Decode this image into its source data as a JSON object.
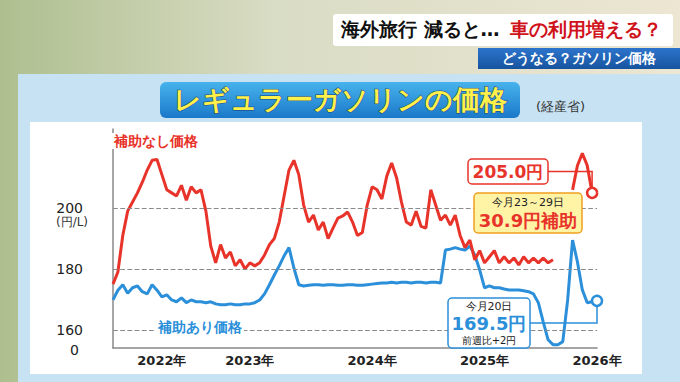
{
  "header": {
    "left": "海外旅行 減ると…",
    "right": "車の利用増える？",
    "subheader": "どうなる？ガソリン価格"
  },
  "chart_data": {
    "type": "line",
    "title": "レギュラーガソリンの価格",
    "source": "(経産省)",
    "ylabel": "(円/L)",
    "y_axis_break_label": "0",
    "categories": [
      null,
      null,
      null,
      null,
      null,
      null,
      null,
      null,
      null,
      null,
      "2022年",
      null,
      null,
      null,
      null,
      null,
      null,
      null,
      null,
      null,
      null,
      null,
      null,
      null,
      null,
      null,
      null,
      null,
      "2023年",
      null,
      null,
      null,
      null,
      null,
      null,
      null,
      null,
      null,
      null,
      null,
      null,
      null,
      null,
      null,
      null,
      null,
      null,
      null,
      null,
      null,
      null,
      null,
      null,
      "2024年",
      null,
      null,
      null,
      null,
      null,
      null,
      null,
      null,
      null,
      null,
      null,
      null,
      null,
      null,
      null,
      null,
      null,
      null,
      null,
      null,
      null,
      null,
      "2025年",
      null,
      null,
      null,
      null,
      null,
      null,
      null,
      null,
      null,
      null,
      null,
      null,
      null,
      null,
      null,
      null,
      null,
      null,
      null,
      null,
      null,
      null,
      "2026年"
    ],
    "series": [
      {
        "name": "補助なし価格",
        "color": "#e8332a",
        "values": [
          175,
          179,
          191,
          199,
          202,
          205,
          208.5,
          212.5,
          215.7,
          216,
          211,
          206,
          205,
          204,
          207.5,
          202.6,
          207,
          205,
          206,
          199,
          187.5,
          182,
          188,
          183.6,
          185.6,
          181,
          183,
          180,
          182,
          181,
          182,
          184.6,
          188,
          190,
          195.4,
          204,
          212.5,
          215.7,
          211,
          201,
          195.4,
          197.7,
          192.8,
          195.4,
          190,
          193.4,
          196.7,
          197.4,
          198.7,
          195.4,
          191,
          192,
          201,
          207,
          206,
          203,
          210.5,
          214.8,
          210,
          202,
          195.4,
          194.4,
          199,
          194,
          193.4,
          206,
          201,
          196,
          197.7,
          194.4,
          197.7,
          191,
          187,
          189.5,
          183,
          186,
          182,
          184,
          186,
          182,
          184,
          182,
          183.6,
          181.3,
          184,
          182,
          183.6,
          182,
          183.6,
          182,
          183,
          null,
          null,
          null,
          206,
          214,
          218,
          214,
          205.0,
          null
        ]
      },
      {
        "name": "補助あり価格",
        "color": "#2b8fd9",
        "values": [
          169.8,
          173,
          174.8,
          172,
          173.8,
          174.4,
          172.5,
          171.8,
          174.8,
          173,
          170.8,
          171.5,
          169.8,
          169.2,
          170.5,
          168.9,
          169.8,
          169.2,
          169.2,
          168.9,
          169.2,
          168.5,
          168.2,
          168.2,
          168.5,
          168.2,
          168.2,
          168.5,
          168.5,
          168.9,
          169.8,
          171.8,
          174.8,
          178,
          181,
          184.3,
          187,
          180.3,
          174.8,
          174.4,
          174.6,
          174.8,
          174.8,
          174.6,
          174.8,
          174.8,
          174.6,
          174.6,
          174.8,
          174.8,
          174.6,
          174.6,
          174.8,
          175,
          175.2,
          175.4,
          175.4,
          175.6,
          175.4,
          175.6,
          175.6,
          175.4,
          175.6,
          175.6,
          175.4,
          175.6,
          175.6,
          175.4,
          186.2,
          186.5,
          187,
          186.5,
          186.2,
          187.5,
          184.6,
          179.7,
          173.8,
          174.4,
          173.8,
          173.8,
          173.4,
          173.1,
          173.1,
          173.1,
          172.8,
          172.5,
          171.8,
          168.9,
          162.6,
          156.7,
          155.1,
          155.1,
          156.1,
          169.8,
          189.5,
          182.3,
          173.1,
          168.9,
          169.2,
          169.5
        ]
      }
    ],
    "ylim": [
      154,
      226
    ],
    "yticks": [
      160,
      180,
      200
    ],
    "grid": true,
    "annotations": [
      {
        "series": "補助なし価格",
        "value": 205.0,
        "lines": [
          "205.0円"
        ]
      },
      {
        "lines": [
          "今月23～29日",
          "30.9円補助"
        ]
      },
      {
        "series": "補助あり価格",
        "value": 169.5,
        "lines": [
          "今月20日",
          "169.5円",
          "前週比+2円"
        ]
      }
    ]
  }
}
